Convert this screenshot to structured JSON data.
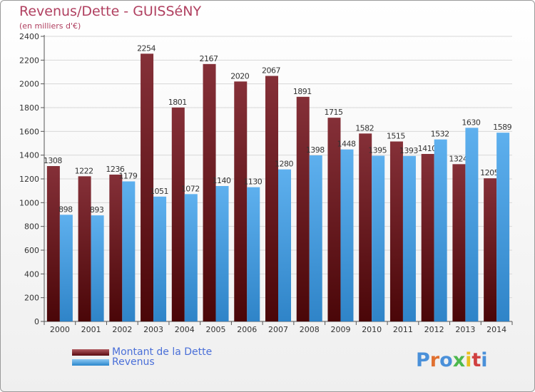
{
  "header": {
    "title": "Revenus/Dette - GUISSéNY",
    "subtitle": "(en milliers d'€)"
  },
  "legend": {
    "items": [
      {
        "label": "Montant de la Dette",
        "color": "#7a1f25"
      },
      {
        "label": "Revenus",
        "color": "#4aa3e6"
      }
    ]
  },
  "logo": {
    "text": "Proxiti",
    "colors": [
      "#4a90d9",
      "#e07030",
      "#4a90d9",
      "#4db84d",
      "#e8c020",
      "#d04040",
      "#4a90d9"
    ]
  },
  "chart_data": {
    "type": "bar",
    "categories": [
      "2000",
      "2001",
      "2002",
      "2003",
      "2004",
      "2005",
      "2006",
      "2007",
      "2008",
      "2009",
      "2010",
      "2011",
      "2012",
      "2013",
      "2014"
    ],
    "series": [
      {
        "name": "Montant de la Dette",
        "color": "#7a1f25",
        "values": [
          1308,
          1222,
          1236,
          2254,
          1801,
          2167,
          2020,
          2067,
          1891,
          1715,
          1582,
          1515,
          1410,
          1324,
          1205
        ],
        "labels": [
          "1308",
          "1222",
          "1236",
          "2254",
          "1801",
          "2167",
          "2020",
          "2067",
          "1891",
          "1715",
          "1582",
          "1515",
          "1410",
          "1324",
          "1205"
        ]
      },
      {
        "name": "Revenus",
        "color": "#4aa3e6",
        "values": [
          898,
          893,
          1179,
          1051,
          1072,
          1140,
          1130,
          1280,
          1398,
          1448,
          1395,
          1393,
          1532,
          1630,
          1589
        ],
        "labels": [
          "898",
          "893",
          "1179",
          "1051",
          "1072",
          "1140",
          "1130",
          "1280",
          "1398",
          "1448",
          "1395",
          "1393",
          "1532",
          "1630",
          "1589"
        ]
      }
    ],
    "ylim": [
      0,
      2400
    ],
    "yticks": [
      0,
      200,
      400,
      600,
      800,
      1000,
      1200,
      1400,
      1600,
      1800,
      2000,
      2200,
      2400
    ],
    "grid": true,
    "legend_position": "bottom-left"
  }
}
